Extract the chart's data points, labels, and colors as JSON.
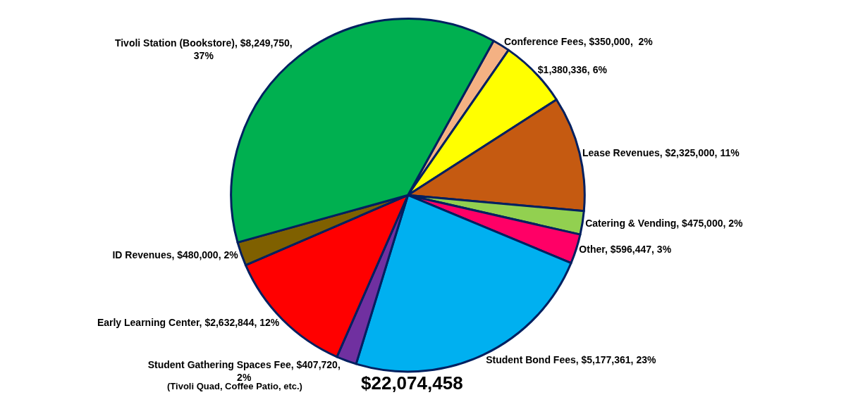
{
  "chart_data": {
    "type": "pie",
    "categories": [
      "Conference Fees",
      null,
      "Lease Revenues",
      "Catering & Vending",
      "Other",
      "Student Bond Fees",
      "Student Gathering Spaces Fee",
      "Early Learning Center",
      "ID Revenues",
      "Tivoli Station (Bookstore)"
    ],
    "values": [
      350000,
      1380336,
      2325000,
      475000,
      596447,
      5177361,
      407720,
      2632844,
      480000,
      8249750
    ],
    "value_labels": [
      "$350,000,  2%",
      "$1,380,336, 6%",
      "$2,325,000, 11%",
      "$475,000, 2%",
      "$596,447, 3%",
      "$5,177,361, 23%",
      "$407,720, 2%",
      "$2,632,844, 12%",
      "$480,000, 2%",
      "$8,249,750, 37%"
    ],
    "colors": [
      "#f4b183",
      "#ffff00",
      "#c55a11",
      "#92d050",
      "#ff0066",
      "#00b0f0",
      "#7030a0",
      "#ff0000",
      "#7f6000",
      "#00b050"
    ],
    "annotations": [
      "$22,074,458",
      "(Tivoli Quad, Coffee Patio, etc.)"
    ],
    "legend": false
  }
}
